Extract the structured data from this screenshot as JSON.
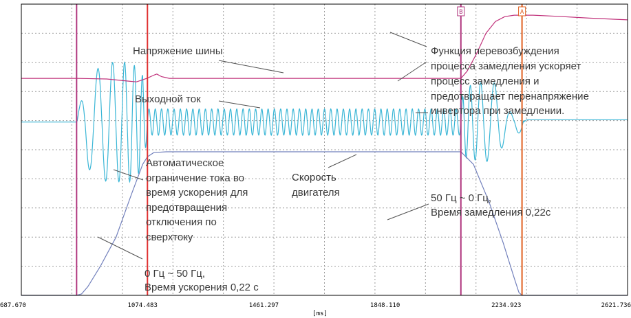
{
  "chart_data": {
    "type": "line",
    "xlabel": "[ms]",
    "xlim": [
      687.67,
      2621.736
    ],
    "ticks": [
      "687.670",
      "1074.483",
      "1461.297",
      "1848.110",
      "2234.923",
      "2621.736"
    ],
    "tick_values": [
      687.67,
      1074.483,
      1461.297,
      1848.11,
      2234.923,
      2621.736
    ],
    "grid": true,
    "cursors": [
      {
        "label": "",
        "t": 864,
        "color": "#b0367e"
      },
      {
        "label": "",
        "t": 1090,
        "color": "#e03030"
      },
      {
        "label": "B",
        "t": 2090,
        "color": "#b0367e"
      },
      {
        "label": "A",
        "t": 2285,
        "color": "#e06020"
      }
    ],
    "series": [
      {
        "color": "#c0307a",
        "points": [
          [
            687.67,
            0.745
          ],
          [
            864,
            0.745
          ],
          [
            960,
            0.743
          ],
          [
            1035,
            0.735
          ],
          [
            1055,
            0.733
          ],
          [
            1075,
            0.74
          ],
          [
            1090,
            0.746
          ],
          [
            1110,
            0.756
          ],
          [
            1120,
            0.76
          ],
          [
            1135,
            0.751
          ],
          [
            1160,
            0.745
          ],
          [
            2090,
            0.745
          ],
          [
            2110,
            0.77
          ],
          [
            2140,
            0.83
          ],
          [
            2170,
            0.9
          ],
          [
            2200,
            0.94
          ],
          [
            2230,
            0.957
          ],
          [
            2260,
            0.962
          ],
          [
            2320,
            0.962
          ],
          [
            2400,
            0.958
          ],
          [
            2500,
            0.952
          ],
          [
            2621.736,
            0.946
          ]
        ]
      },
      {
        "color": "#3ab6d6",
        "baseline": 0.595
      },
      {
        "color": "#7280bc",
        "points": [
          [
            687.67,
            0.0
          ],
          [
            864,
            0.0
          ],
          [
            880,
            0.005
          ],
          [
            900,
            0.03
          ],
          [
            940,
            0.1
          ],
          [
            990,
            0.2
          ],
          [
            1040,
            0.35
          ],
          [
            1075,
            0.45
          ],
          [
            1090,
            0.476
          ],
          [
            1110,
            0.49
          ],
          [
            1150,
            0.493
          ],
          [
            2090,
            0.493
          ],
          [
            2130,
            0.45
          ],
          [
            2180,
            0.32
          ],
          [
            2225,
            0.18
          ],
          [
            2260,
            0.06
          ],
          [
            2275,
            0.01
          ],
          [
            2285,
            0.0
          ],
          [
            2621.736,
            0.0
          ]
        ]
      }
    ],
    "annotations": [
      {
        "text": "Напряжение шины",
        "point": [
          1300,
          0.745
        ]
      },
      {
        "text": "Выходной ток",
        "point": [
          1610,
          0.63
        ]
      },
      {
        "text": "Функция перевозбуждения процесса замедления ускоряет процесс замедления и предотвращает перенапряжение инвертора при замедлении.",
        "point": [
          2300,
          0.93
        ]
      },
      {
        "text": "Автоматическое ограничение тока во время ускорения для предотвращения отключения по сверхтоку",
        "point": [
          1055,
          0.42
        ]
      },
      {
        "text": "Скорость двигателя",
        "point": [
          2010,
          0.493
        ]
      },
      {
        "text": "50 Гц ~ 0 Гц, Время замедления 0,22с",
        "point": [
          2200,
          0.25
        ]
      },
      {
        "text": "0 Гц ~ 50 Гц, Время ускорения 0,22 с",
        "point": [
          950,
          0.2
        ]
      }
    ]
  },
  "labels": {
    "bus": "Напряжение шины",
    "current": "Выходной ток",
    "overex": [
      "Функция перевозбуждения",
      "процесса замедления ускоряет",
      "процесс замедления и",
      "предотвращает перенапряжение",
      "инвертора при замедлении."
    ],
    "climit": [
      "Автоматическое",
      "ограничение тока во",
      "время ускорения для",
      "предотвращения",
      "отключения по",
      "сверхтоку"
    ],
    "speed": [
      "Скорость",
      "двигателя"
    ],
    "decel": [
      "50 Гц ~ 0 Гц,",
      "Время замедления 0,22с"
    ],
    "accel": [
      "0 Гц ~ 50 Гц,",
      "Время ускорения 0,22 с"
    ]
  },
  "colors": {
    "frame": "#000000",
    "grid": "#9c9c9c",
    "annotation_text": "#3a3a3a",
    "leader_line": "#505050"
  }
}
